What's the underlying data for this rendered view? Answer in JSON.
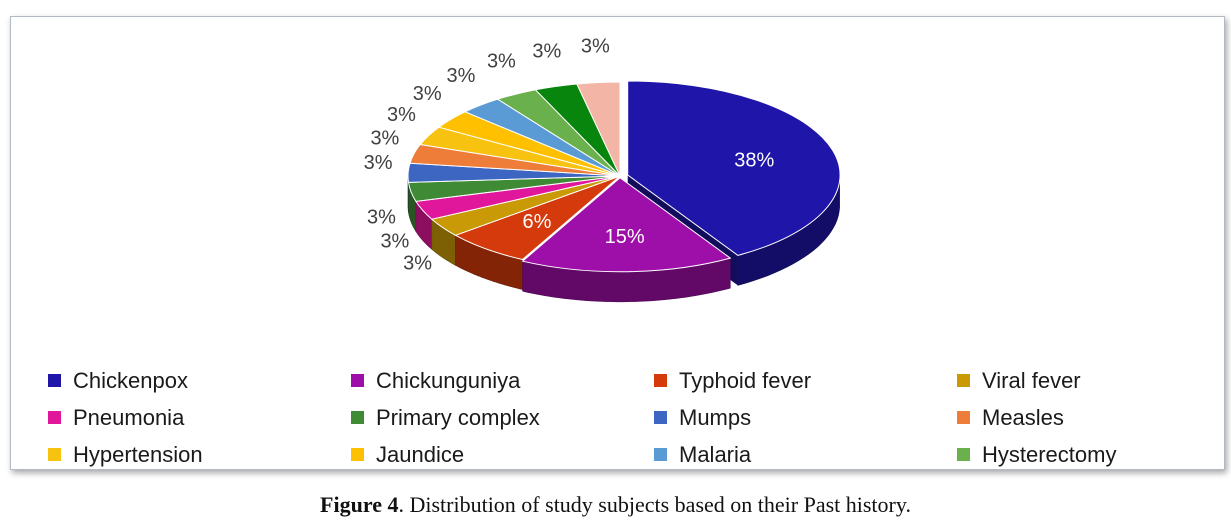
{
  "chart_data": {
    "type": "pie",
    "title": "",
    "legend_position": "bottom",
    "categories": [
      "Chickenpox",
      "Chickunguniya",
      "Typhoid fever",
      "Viral fever",
      "Pneumonia",
      "Primary complex",
      "Mumps",
      "Measles",
      "Hypertension",
      "Jaundice",
      "Malaria",
      "Hysterectomy",
      "",
      ""
    ],
    "values": [
      38,
      15,
      6,
      3,
      3,
      3,
      3,
      3,
      3,
      3,
      3,
      3,
      3,
      3
    ],
    "labels": [
      "38%",
      "15%",
      "6%",
      "3%",
      "3%",
      "3%",
      "3%",
      "3%",
      "3%",
      "3%",
      "3%",
      "3%",
      "3%",
      "3%"
    ],
    "colors": [
      "#1f15a8",
      "#9e0ea8",
      "#d43a0c",
      "#c99a06",
      "#e0179a",
      "#3f8a35",
      "#3c66c2",
      "#ee7d3a",
      "#f7c210",
      "#ffc000",
      "#5b9bd5",
      "#6ab04c",
      "#07850c",
      "#f3b6a6",
      "#c8c8c8",
      "#0fb4ec"
    ]
  },
  "legend": [
    {
      "label": "Chickenpox",
      "color": "#1f15a8"
    },
    {
      "label": "Chickunguniya",
      "color": "#9e0ea8"
    },
    {
      "label": "Typhoid fever",
      "color": "#d43a0c"
    },
    {
      "label": "Viral fever",
      "color": "#c99a06"
    },
    {
      "label": "Pneumonia",
      "color": "#e0179a"
    },
    {
      "label": "Primary complex",
      "color": "#3f8a35"
    },
    {
      "label": "Mumps",
      "color": "#3c66c2"
    },
    {
      "label": "Measles",
      "color": "#ee7d3a"
    },
    {
      "label": "Hypertension",
      "color": "#f7c210"
    },
    {
      "label": "Jaundice",
      "color": "#ffc000"
    },
    {
      "label": "Malaria",
      "color": "#5b9bd5"
    },
    {
      "label": "Hysterectomy",
      "color": "#6ab04c"
    }
  ],
  "caption": {
    "label": "Figure 4",
    "text": ". Distribution of study subjects based on their Past history."
  }
}
